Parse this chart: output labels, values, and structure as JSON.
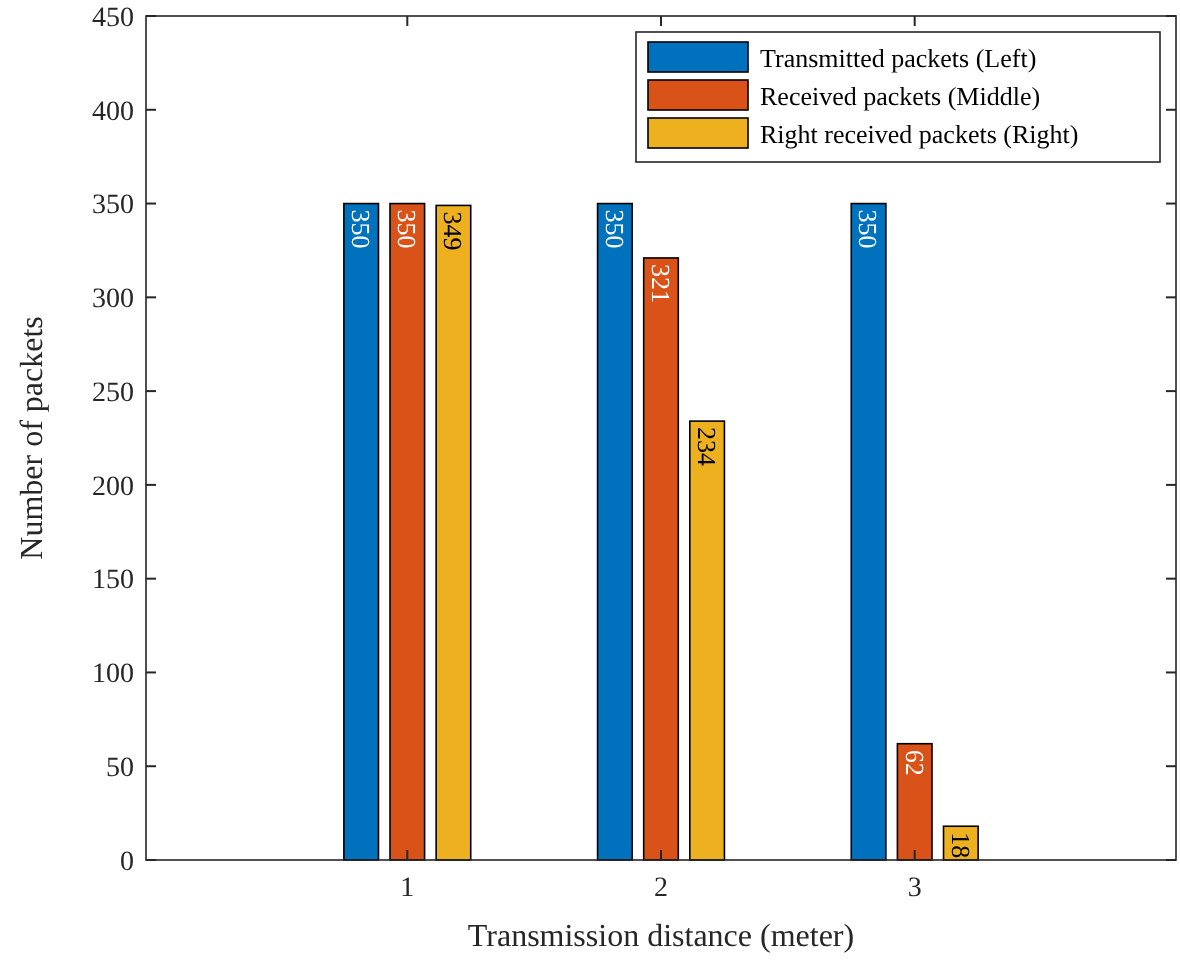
{
  "chart_data": {
    "type": "bar",
    "xlabel": "Transmission distance (meter)",
    "ylabel": "Number of packets",
    "categories": [
      "1",
      "2",
      "3"
    ],
    "series": [
      {
        "name": "Transmitted packets (Left)",
        "color": "#0072bd",
        "values": [
          350,
          350,
          350
        ]
      },
      {
        "name": "Received packets (Middle)",
        "color": "#d95319",
        "values": [
          350,
          321,
          62
        ]
      },
      {
        "name": "Right received packets (Right)",
        "color": "#edb120",
        "values": [
          349,
          234,
          18
        ]
      }
    ],
    "ylim": [
      0,
      450
    ],
    "yticks": [
      0,
      50,
      100,
      150,
      200,
      250,
      300,
      350,
      400,
      450
    ],
    "data_labels": true,
    "legend": "top right",
    "grid": false
  }
}
